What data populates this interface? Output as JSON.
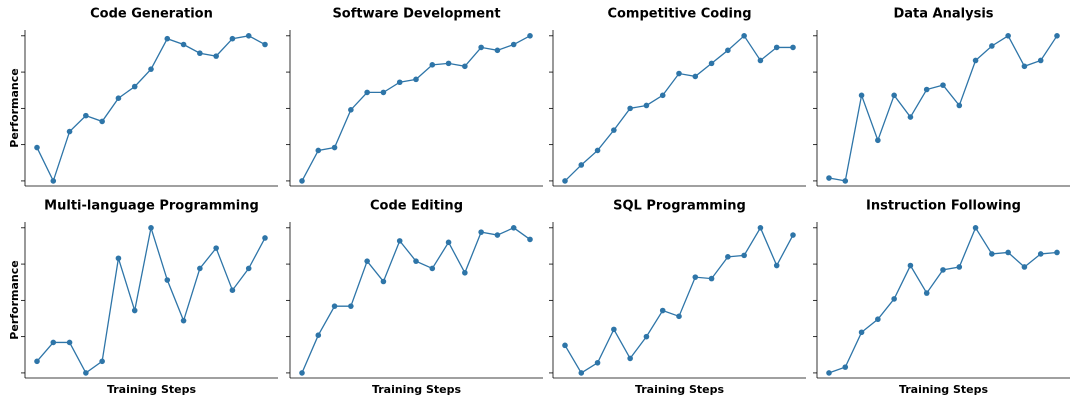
{
  "chart_data": [
    {
      "type": "line",
      "title": "Code Generation",
      "y_label": "Performance",
      "color": "#2e75a8",
      "categories": [
        null,
        null,
        null,
        null,
        null,
        null,
        null,
        null,
        null,
        null,
        null,
        null,
        null,
        null,
        null
      ],
      "values": [
        0.23,
        0,
        0.34,
        0.45,
        0.41,
        0.57,
        0.65,
        0.77,
        0.98,
        0.94,
        0.88,
        0.86,
        0.98,
        1.0,
        0.94
      ],
      "ylim": [
        -0.035,
        1.04
      ],
      "yticks": [
        0,
        0.25,
        0.5,
        0.75,
        1
      ]
    },
    {
      "type": "line",
      "title": "Software Development",
      "color": "#2e75a8",
      "categories": [
        null,
        null,
        null,
        null,
        null,
        null,
        null,
        null,
        null,
        null,
        null,
        null,
        null,
        null,
        null
      ],
      "values": [
        0,
        0.21,
        0.23,
        0.49,
        0.61,
        0.61,
        0.68,
        0.7,
        0.8,
        0.81,
        0.79,
        0.92,
        0.9,
        0.94,
        1.0
      ],
      "ylim": [
        -0.035,
        1.04
      ],
      "yticks": [
        0,
        0.25,
        0.5,
        0.75,
        1
      ]
    },
    {
      "type": "line",
      "title": "Competitive Coding",
      "color": "#2e75a8",
      "categories": [
        null,
        null,
        null,
        null,
        null,
        null,
        null,
        null,
        null,
        null,
        null,
        null,
        null,
        null,
        null
      ],
      "values": [
        0,
        0.11,
        0.21,
        0.35,
        0.5,
        0.52,
        0.59,
        0.74,
        0.72,
        0.81,
        0.9,
        1.0,
        0.83,
        0.92,
        0.92
      ],
      "ylim": [
        -0.035,
        1.04
      ],
      "yticks": [
        0,
        0.25,
        0.5,
        0.75,
        1
      ]
    },
    {
      "type": "line",
      "title": "Data Analysis",
      "color": "#2e75a8",
      "categories": [
        null,
        null,
        null,
        null,
        null,
        null,
        null,
        null,
        null,
        null,
        null,
        null,
        null,
        null,
        null
      ],
      "values": [
        0.02,
        0,
        0.59,
        0.28,
        0.59,
        0.44,
        0.63,
        0.66,
        0.52,
        0.83,
        0.93,
        1.0,
        0.79,
        0.83,
        1.0
      ],
      "ylim": [
        -0.035,
        1.04
      ],
      "yticks": [
        0,
        0.25,
        0.5,
        0.75,
        1
      ]
    },
    {
      "type": "line",
      "title": "Multi-language Programming",
      "y_label": "Performance",
      "x_label": "Training Steps",
      "color": "#2e75a8",
      "categories": [
        null,
        null,
        null,
        null,
        null,
        null,
        null,
        null,
        null,
        null,
        null,
        null,
        null,
        null,
        null
      ],
      "values": [
        0.08,
        0.21,
        0.21,
        0,
        0.08,
        0.79,
        0.43,
        1.0,
        0.64,
        0.36,
        0.72,
        0.86,
        0.57,
        0.72,
        0.93
      ],
      "ylim": [
        -0.035,
        1.04
      ],
      "yticks": [
        0,
        0.25,
        0.5,
        0.75,
        1
      ]
    },
    {
      "type": "line",
      "title": "Code Editing",
      "x_label": "Training Steps",
      "color": "#2e75a8",
      "categories": [
        null,
        null,
        null,
        null,
        null,
        null,
        null,
        null,
        null,
        null,
        null,
        null,
        null,
        null,
        null
      ],
      "values": [
        0,
        0.26,
        0.46,
        0.46,
        0.77,
        0.63,
        0.91,
        0.77,
        0.72,
        0.9,
        0.69,
        0.97,
        0.95,
        1.0,
        0.92
      ],
      "ylim": [
        -0.035,
        1.04
      ],
      "yticks": [
        0,
        0.25,
        0.5,
        0.75,
        1
      ]
    },
    {
      "type": "line",
      "title": "SQL Programming",
      "x_label": "Training Steps",
      "color": "#2e75a8",
      "categories": [
        null,
        null,
        null,
        null,
        null,
        null,
        null,
        null,
        null,
        null,
        null,
        null,
        null,
        null,
        null
      ],
      "values": [
        0.19,
        0,
        0.07,
        0.3,
        0.1,
        0.25,
        0.43,
        0.39,
        0.66,
        0.65,
        0.8,
        0.81,
        1.0,
        0.74,
        0.95
      ],
      "ylim": [
        -0.035,
        1.04
      ],
      "yticks": [
        0,
        0.25,
        0.5,
        0.75,
        1
      ]
    },
    {
      "type": "line",
      "title": "Instruction Following",
      "x_label": "Training Steps",
      "color": "#2e75a8",
      "categories": [
        null,
        null,
        null,
        null,
        null,
        null,
        null,
        null,
        null,
        null,
        null,
        null,
        null,
        null,
        null
      ],
      "values": [
        0,
        0.04,
        0.28,
        0.37,
        0.51,
        0.74,
        0.55,
        0.71,
        0.73,
        1.0,
        0.82,
        0.83,
        0.73,
        0.82,
        0.83
      ],
      "ylim": [
        -0.035,
        1.04
      ],
      "yticks": [
        0,
        0.25,
        0.5,
        0.75,
        1
      ]
    }
  ]
}
